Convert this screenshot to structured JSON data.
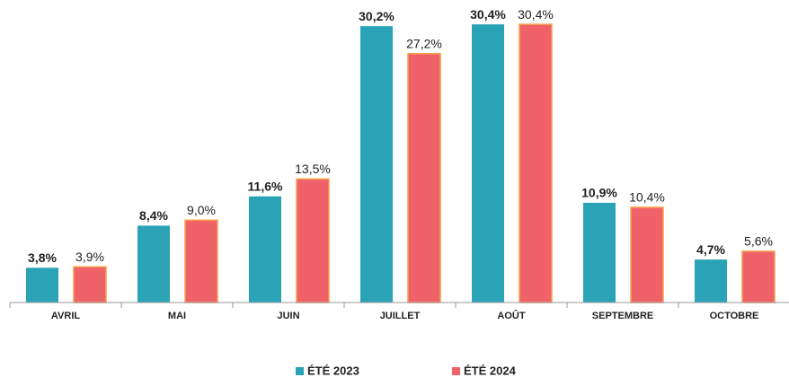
{
  "chart_data": {
    "type": "bar",
    "categories": [
      "AVRIL",
      "MAI",
      "JUIN",
      "JUILLET",
      "AOÛT",
      "SEPTEMBRE",
      "OCTOBRE"
    ],
    "series": [
      {
        "name": "ÉTÉ 2023",
        "color": "#2ba3b7",
        "values": [
          3.8,
          8.4,
          11.6,
          30.2,
          30.4,
          10.9,
          4.7
        ],
        "value_labels": [
          "3,8%",
          "8,4%",
          "11,6%",
          "30,2%",
          "30,4%",
          "10,9%",
          "4,7%"
        ]
      },
      {
        "name": "ÉTÉ 2024",
        "color": "#f0626a",
        "values": [
          3.9,
          9.0,
          13.5,
          27.2,
          30.4,
          10.4,
          5.6
        ],
        "value_labels": [
          "3,9%",
          "9,0%",
          "13,5%",
          "27,2%",
          "30,4%",
          "10,4%",
          "5,6%"
        ]
      }
    ],
    "ylim": [
      0,
      31
    ],
    "legend": "bottom"
  }
}
